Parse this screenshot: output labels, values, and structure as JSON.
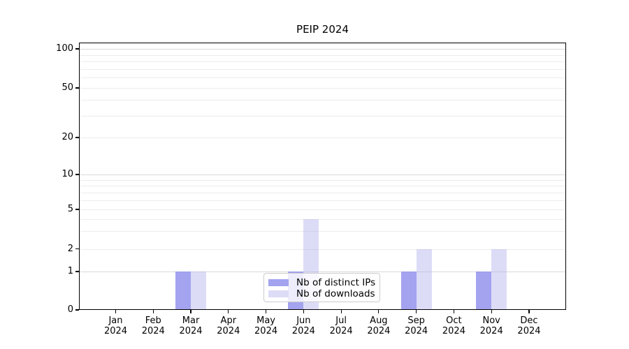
{
  "title": "PEIP 2024",
  "chart_data": {
    "type": "bar",
    "title": "PEIP 2024",
    "categories": [
      "Jan 2024",
      "Feb 2024",
      "Mar 2024",
      "Apr 2024",
      "May 2024",
      "Jun 2024",
      "Jul 2024",
      "Aug 2024",
      "Sep 2024",
      "Oct 2024",
      "Nov 2024",
      "Dec 2024"
    ],
    "x_tick_line1": [
      "Jan",
      "Feb",
      "Mar",
      "Apr",
      "May",
      "Jun",
      "Jul",
      "Aug",
      "Sep",
      "Oct",
      "Nov",
      "Dec"
    ],
    "x_tick_line2": "2024",
    "series": [
      {
        "name": "Nb of distinct IPs",
        "swatch_color": "#a3a3f0",
        "fill": "rgba(140,140,236,0.8)",
        "values": [
          0,
          0,
          1,
          0,
          0,
          1,
          0,
          0,
          1,
          0,
          1,
          0
        ]
      },
      {
        "name": "Nb of downloads",
        "swatch_color": "#dcdcf7",
        "fill": "rgba(177,177,237,0.45)",
        "values": [
          0,
          0,
          1,
          0,
          0,
          4,
          0,
          0,
          2,
          0,
          2,
          0
        ]
      }
    ],
    "yscale": "symlog",
    "ylim": [
      0,
      120
    ],
    "y_tick_values": [
      0,
      1,
      2,
      5,
      10,
      20,
      50,
      100
    ],
    "y_tick_labels": [
      "0",
      "1",
      "2",
      "5",
      "10",
      "20",
      "50",
      "100"
    ],
    "y_major_gridlines": [
      1,
      10,
      100
    ],
    "y_minor_gridlines": [
      2,
      3,
      4,
      5,
      6,
      7,
      8,
      9,
      20,
      30,
      40,
      50,
      60,
      70,
      80,
      90
    ],
    "grid": "horizontal",
    "legend_position": "lower center",
    "xlabel": "",
    "ylabel": ""
  },
  "colors": {
    "background": "#ffffff",
    "spine": "#000000",
    "grid_minor": "#ececec",
    "grid_major": "#d9d9d9",
    "bar_distinct_ips": "#a3a3f0",
    "bar_downloads": "#dcdcf7",
    "legend_border": "#cccccc",
    "text": "#000000"
  }
}
